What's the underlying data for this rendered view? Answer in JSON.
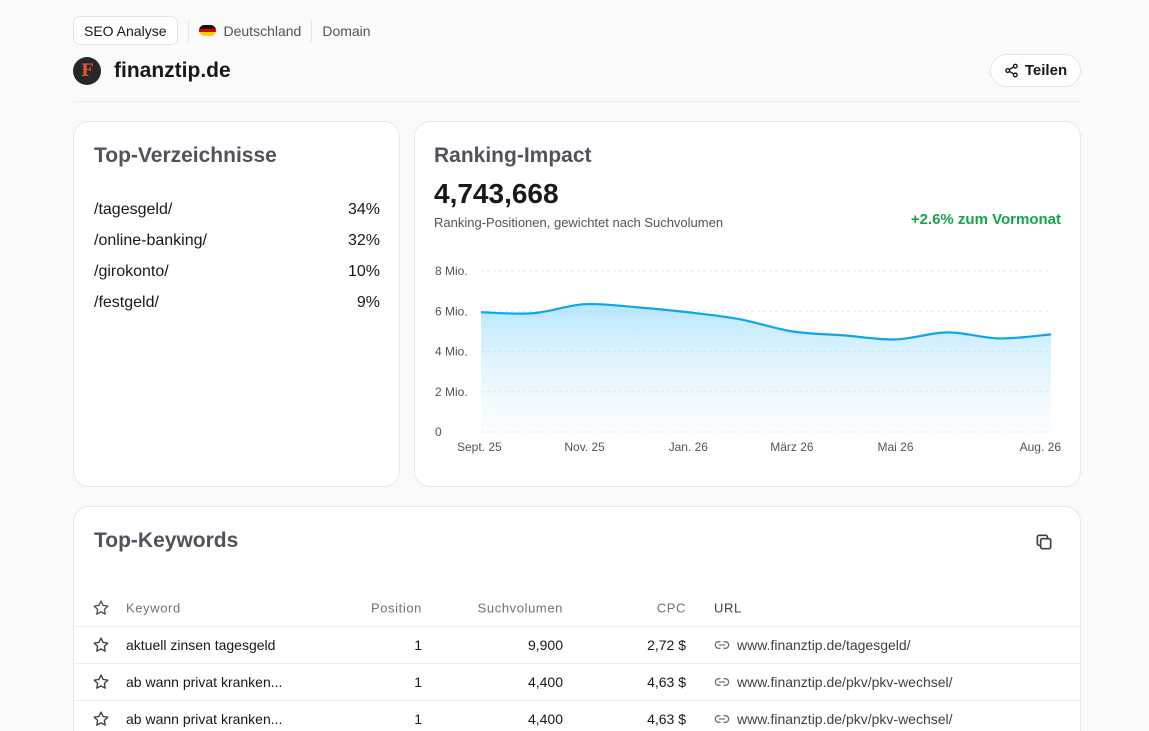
{
  "header": {
    "mode_label": "SEO Analyse",
    "country": "Deutschland",
    "scope": "Domain",
    "site_logo_letter": "F",
    "site_name": "finanztip.de",
    "share_label": "Teilen"
  },
  "directories": {
    "title": "Top-Verzeichnisse",
    "items": [
      {
        "path": "/tagesgeld/",
        "share": "34%"
      },
      {
        "path": "/online-banking/",
        "share": "32%"
      },
      {
        "path": "/girokonto/",
        "share": "10%"
      },
      {
        "path": "/festgeld/",
        "share": "9%"
      }
    ]
  },
  "ranking": {
    "title": "Ranking-Impact",
    "value": "4,743,668",
    "subtitle": "Ranking-Positionen, gewichtet nach Suchvolumen",
    "delta": "+2.6% zum Vormonat"
  },
  "chart_data": {
    "type": "area",
    "x": [
      "Sept. 25",
      "Okt. 25",
      "Nov. 25",
      "Dez. 25",
      "Jan. 26",
      "Feb. 26",
      "März 26",
      "Apr. 26",
      "Mai 26",
      "Juni 26",
      "Juli 26",
      "Aug. 26"
    ],
    "xticks": [
      "Sept. 25",
      "Nov. 25",
      "Jan. 26",
      "März 26",
      "Mai 26",
      "Aug. 26"
    ],
    "series": [
      {
        "values": [
          5.95,
          5.9,
          6.35,
          6.2,
          5.95,
          5.6,
          5.0,
          4.8,
          4.6,
          4.95,
          4.65,
          4.85
        ]
      }
    ],
    "yticks": [
      "0",
      "2 Mio.",
      "4 Mio.",
      "6 Mio.",
      "8 Mio."
    ],
    "ylim": [
      0,
      8
    ],
    "grid": true,
    "color": "#0ea5e9"
  },
  "keywords": {
    "title": "Top-Keywords",
    "columns": {
      "keyword": "Keyword",
      "position": "Position",
      "volume": "Suchvolumen",
      "cpc": "CPC",
      "url": "URL"
    },
    "rows": [
      {
        "keyword": "aktuell zinsen tagesgeld",
        "position": "1",
        "volume": "9,900",
        "cpc": "2,72 $",
        "url": "www.finanztip.de/tagesgeld/"
      },
      {
        "keyword": "ab wann privat kranken...",
        "position": "1",
        "volume": "4,400",
        "cpc": "4,63 $",
        "url": "www.finanztip.de/pkv/pkv-wechsel/"
      },
      {
        "keyword": "ab wann privat kranken...",
        "position": "1",
        "volume": "4,400",
        "cpc": "4,63 $",
        "url": "www.finanztip.de/pkv/pkv-wechsel/"
      }
    ]
  }
}
